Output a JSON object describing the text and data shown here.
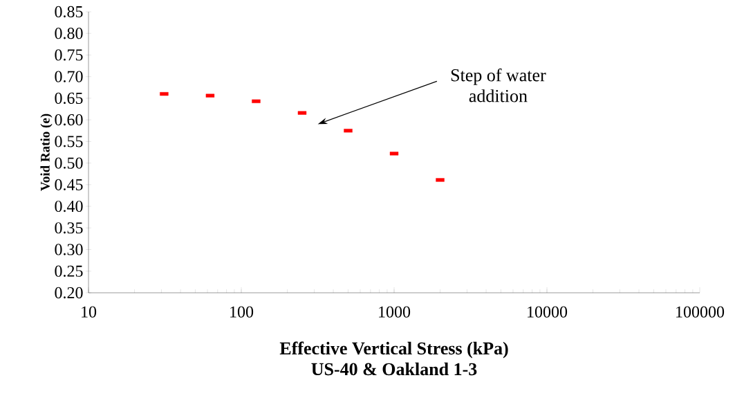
{
  "chart_data": {
    "type": "scatter",
    "xlabel": "Effective Vertical Stress (kPa)",
    "ylabel": "Void Ratio (e)",
    "title": "US-40 & Oakland  1-3",
    "x": [
      31.25,
      62.5,
      125,
      250,
      500,
      1000,
      2000
    ],
    "color": "#ff0000",
    "values": [
      0.66,
      0.656,
      0.643,
      0.616,
      0.575,
      0.522,
      0.461
    ],
    "log": "x",
    "xlim": [
      10,
      100000
    ],
    "xticks": [
      10,
      100,
      1000,
      10000,
      100000
    ],
    "ylim": [
      0.2,
      0.85
    ],
    "yticks": [
      {
        "value": 0.2,
        "label": "0.20"
      },
      {
        "value": 0.25,
        "label": "0.25"
      },
      {
        "value": 0.3,
        "label": "0.30"
      },
      {
        "value": 0.35,
        "label": "0.35"
      },
      {
        "value": 0.4,
        "label": "0.40"
      },
      {
        "value": 0.45,
        "label": "0.45"
      },
      {
        "value": 0.5,
        "label": "0.50"
      },
      {
        "value": 0.55,
        "label": "0.55"
      },
      {
        "value": 0.6,
        "label": "0.60"
      },
      {
        "value": 0.65,
        "label": "0.65"
      },
      {
        "value": 0.7,
        "label": "0.70"
      },
      {
        "value": 0.75,
        "label": "0.75"
      },
      {
        "value": 0.8,
        "label": "0.80"
      },
      {
        "value": 0.85,
        "label": "0.85"
      }
    ],
    "annotations": [
      "Step of water addition"
    ],
    "marker": "square",
    "grid": false
  }
}
